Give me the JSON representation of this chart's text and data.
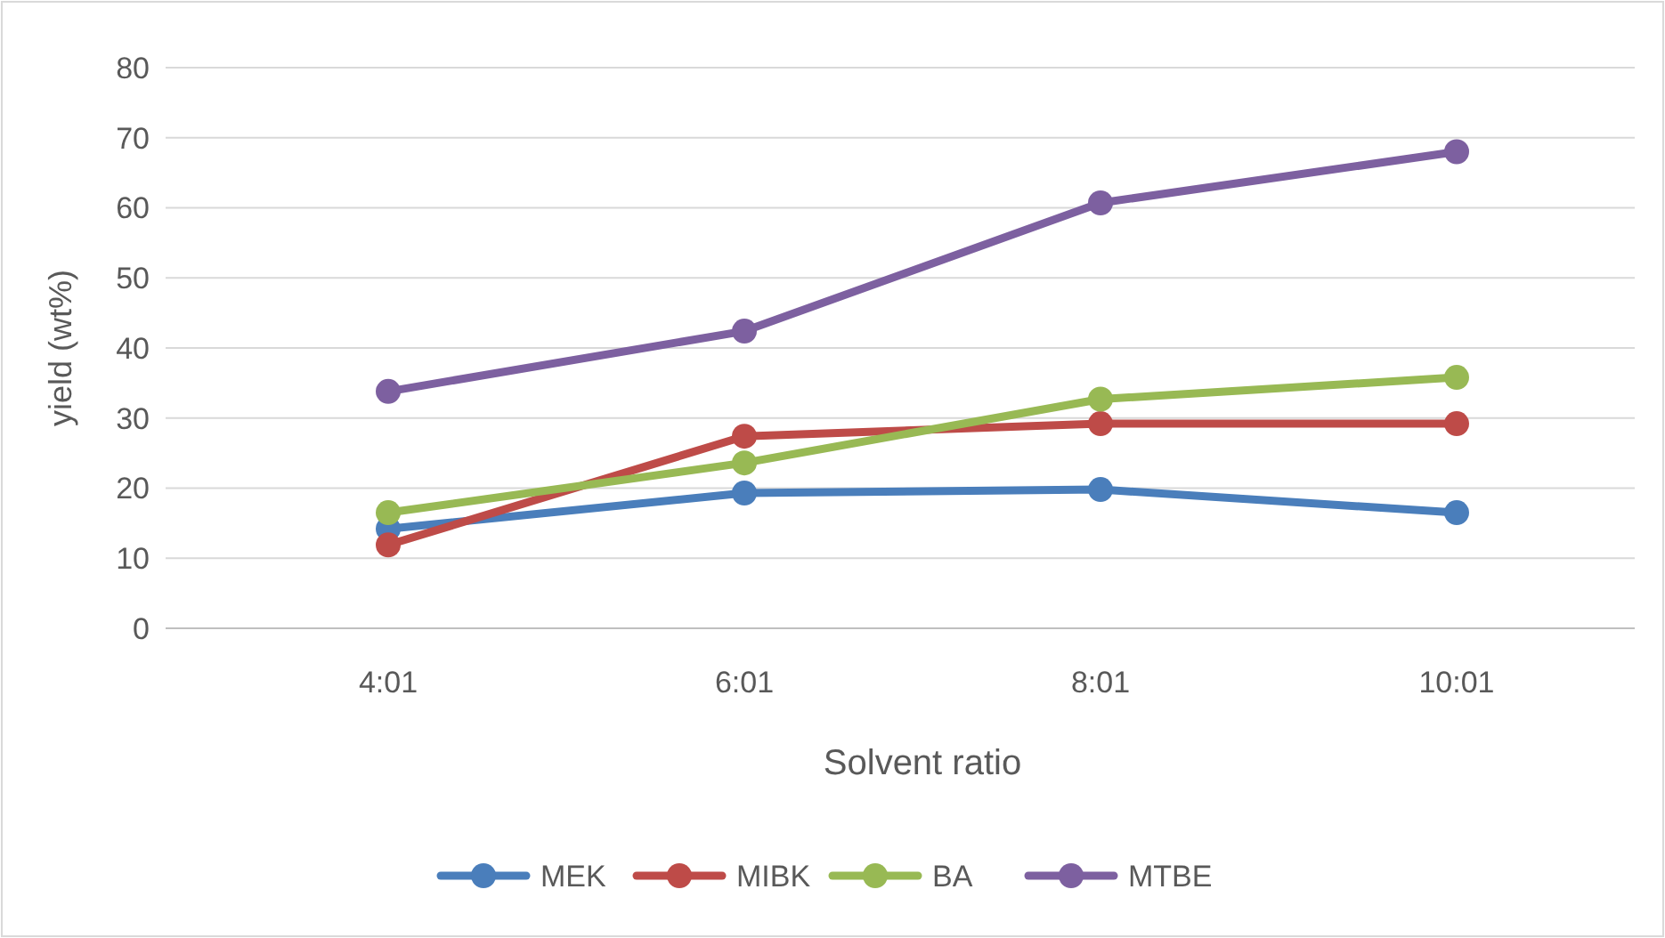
{
  "chart_data": {
    "type": "line",
    "xlabel": "Solvent ratio",
    "ylabel": "yield (wt%)",
    "categories": [
      "4:01",
      "6:01",
      "8:01",
      "10:01"
    ],
    "series": [
      {
        "name": "MEK",
        "color": "#4a7ebb",
        "values": [
          14.2,
          19.3,
          19.8,
          16.5
        ]
      },
      {
        "name": "MIBK",
        "color": "#be4b48",
        "values": [
          11.9,
          27.4,
          29.2,
          29.2
        ]
      },
      {
        "name": "BA",
        "color": "#98b954",
        "values": [
          16.5,
          23.6,
          32.7,
          35.8
        ]
      },
      {
        "name": "MTBE",
        "color": "#7d60a0",
        "values": [
          33.8,
          42.4,
          60.7,
          68.0
        ]
      }
    ],
    "ylim": [
      0,
      80
    ],
    "yticks": [
      0,
      10,
      20,
      30,
      40,
      50,
      60,
      70,
      80
    ],
    "grid": "y",
    "legend": "bottom",
    "marker": "circle",
    "line_style": "solid"
  }
}
